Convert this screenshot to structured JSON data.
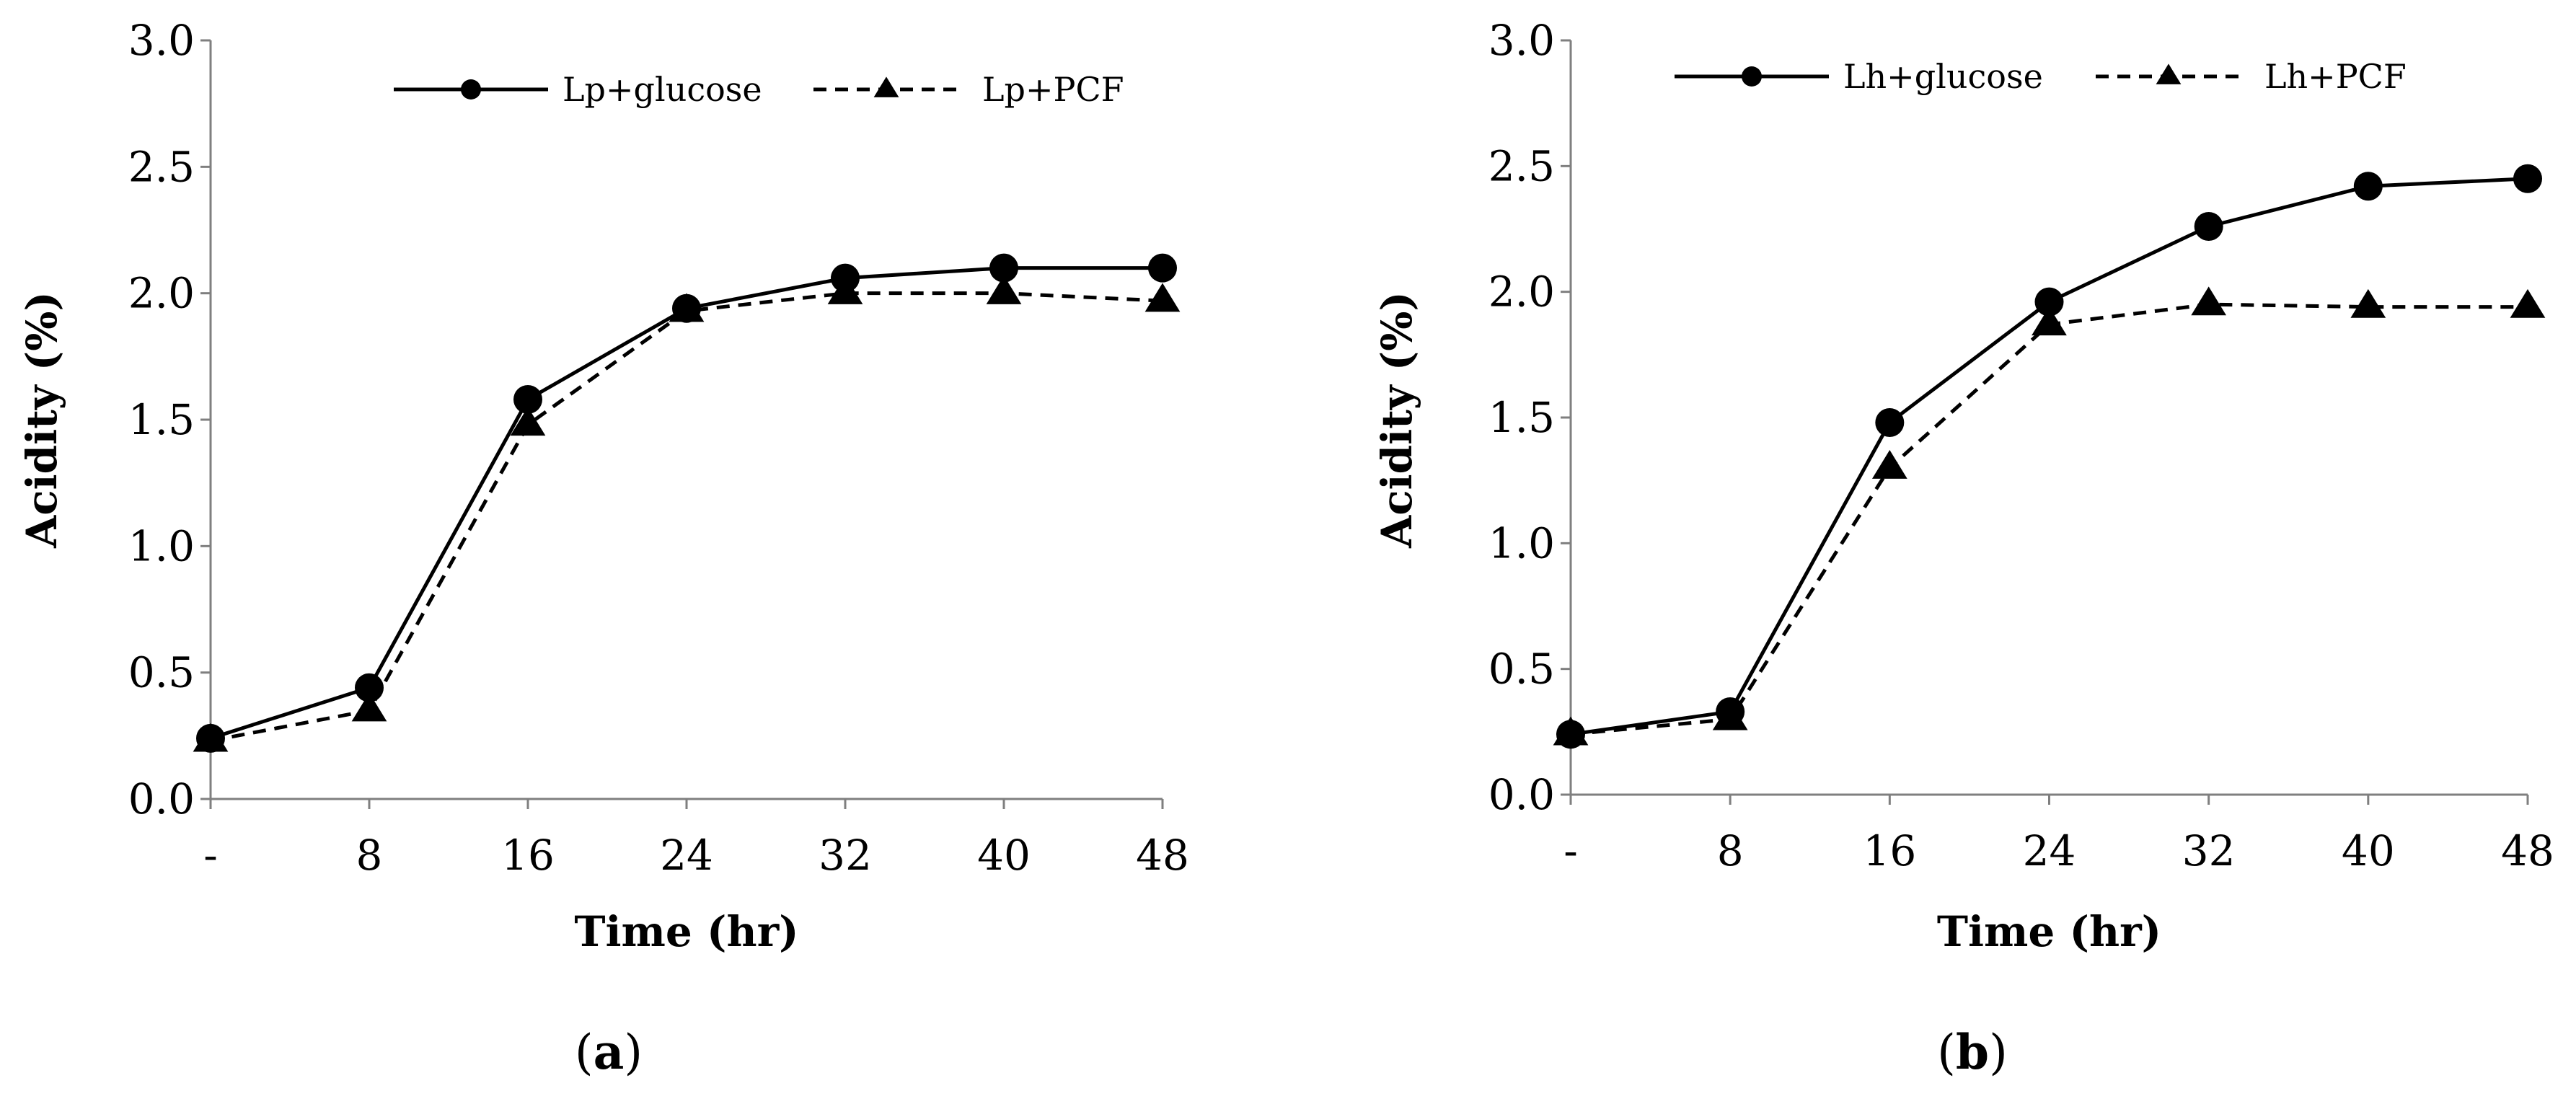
{
  "chart_data": [
    {
      "type": "line",
      "panel_label_open": "(",
      "panel_label_letter": "a",
      "panel_label_close": ")",
      "categories": [
        "-",
        "8",
        "16",
        "24",
        "32",
        "40",
        "48"
      ],
      "xlabel": "Time (hr)",
      "ylabel": "Acidity (%)",
      "ylim": [
        0,
        3.0
      ],
      "yticks": [
        "0.0",
        "0.5",
        "1.0",
        "1.5",
        "2.0",
        "2.5",
        "3.0"
      ],
      "grid": false,
      "legend_position": "top",
      "series": [
        {
          "name": "Lp+glucose",
          "style": "solid",
          "marker": "circle",
          "values": [
            0.24,
            0.44,
            1.58,
            1.94,
            2.06,
            2.1,
            2.1
          ]
        },
        {
          "name": "Lp+PCF",
          "style": "dashed",
          "marker": "triangle",
          "values": [
            0.23,
            0.35,
            1.48,
            1.93,
            2.0,
            2.0,
            1.97
          ]
        }
      ]
    },
    {
      "type": "line",
      "panel_label_open": "(",
      "panel_label_letter": "b",
      "panel_label_close": ")",
      "categories": [
        "-",
        "8",
        "16",
        "24",
        "32",
        "40",
        "48"
      ],
      "xlabel": "Time (hr)",
      "ylabel": "Acidity (%)",
      "ylim": [
        0,
        3.0
      ],
      "yticks": [
        "0.0",
        "0.5",
        "1.0",
        "1.5",
        "2.0",
        "2.5",
        "3.0"
      ],
      "grid": false,
      "legend_position": "top",
      "series": [
        {
          "name": "Lh+glucose",
          "style": "solid",
          "marker": "circle",
          "values": [
            0.24,
            0.33,
            1.48,
            1.96,
            2.26,
            2.42,
            2.45
          ]
        },
        {
          "name": "Lh+PCF",
          "style": "dashed",
          "marker": "triangle",
          "values": [
            0.24,
            0.3,
            1.3,
            1.87,
            1.95,
            1.94,
            1.94
          ]
        }
      ]
    }
  ],
  "colors": {
    "line": "#000000",
    "background": "#ffffff"
  }
}
